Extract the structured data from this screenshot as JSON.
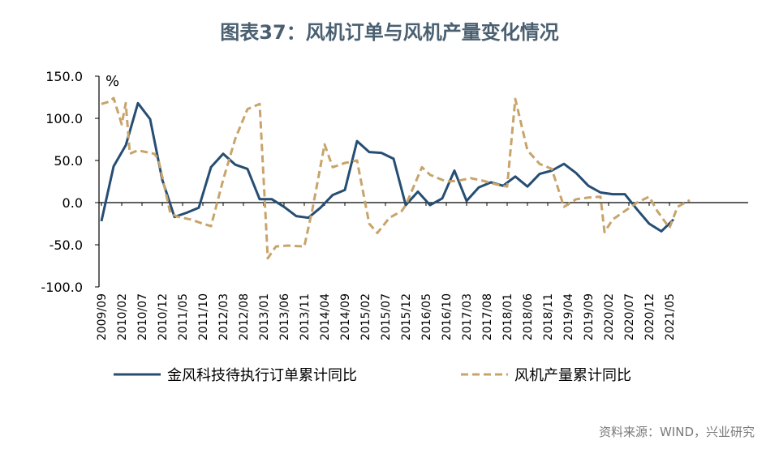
{
  "page": {
    "title": "图表37：风机订单与风机产量变化情况",
    "source": "资料来源：WIND，兴业研究"
  },
  "chart_data": {
    "type": "line",
    "title": "图表37：风机订单与风机产量变化情况",
    "unit": "%",
    "ylim": [
      -100,
      150
    ],
    "yticks": [
      -100,
      -50,
      0,
      50,
      100,
      150
    ],
    "ytick_labels": [
      "-100.0",
      "-50.0",
      "0.0",
      "50.0",
      "100.0",
      "150.0"
    ],
    "x_start": "2009/09",
    "x_labels": [
      "2009/09",
      "2010/02",
      "2010/07",
      "2010/12",
      "2011/05",
      "2011/10",
      "2012/03",
      "2012/08",
      "2013/01",
      "2013/06",
      "2013/11",
      "2014/04",
      "2014/09",
      "2015/02",
      "2015/07",
      "2015/12",
      "2016/05",
      "2016/10",
      "2017/03",
      "2017/08",
      "2018/01",
      "2018/06",
      "2018/11",
      "2019/04",
      "2019/09",
      "2020/02",
      "2020/07",
      "2020/12",
      "2021/05"
    ],
    "grid": false,
    "legend_position": "bottom",
    "series": [
      {
        "name": "金风科技待执行订单累计同比",
        "color": "#264d73",
        "dash": false,
        "points": [
          [
            "2009/09",
            -22
          ],
          [
            "2009/12",
            43
          ],
          [
            "2010/03",
            68
          ],
          [
            "2010/06",
            118
          ],
          [
            "2010/09",
            99
          ],
          [
            "2010/12",
            27
          ],
          [
            "2011/03",
            -17
          ],
          [
            "2011/06",
            -12
          ],
          [
            "2011/09",
            -6
          ],
          [
            "2011/12",
            42
          ],
          [
            "2012/03",
            58
          ],
          [
            "2012/06",
            45
          ],
          [
            "2012/09",
            40
          ],
          [
            "2012/12",
            4
          ],
          [
            "2013/03",
            4
          ],
          [
            "2013/06",
            -5
          ],
          [
            "2013/09",
            -16
          ],
          [
            "2013/12",
            -18
          ],
          [
            "2014/03",
            -6
          ],
          [
            "2014/06",
            9
          ],
          [
            "2014/09",
            15
          ],
          [
            "2014/12",
            73
          ],
          [
            "2015/03",
            60
          ],
          [
            "2015/06",
            59
          ],
          [
            "2015/09",
            52
          ],
          [
            "2015/12",
            -3
          ],
          [
            "2016/03",
            13
          ],
          [
            "2016/06",
            -3
          ],
          [
            "2016/09",
            5
          ],
          [
            "2016/12",
            38
          ],
          [
            "2017/03",
            2
          ],
          [
            "2017/06",
            18
          ],
          [
            "2017/09",
            24
          ],
          [
            "2017/12",
            20
          ],
          [
            "2018/03",
            31
          ],
          [
            "2018/06",
            19
          ],
          [
            "2018/09",
            34
          ],
          [
            "2018/12",
            38
          ],
          [
            "2019/03",
            46
          ],
          [
            "2019/06",
            35
          ],
          [
            "2019/09",
            20
          ],
          [
            "2019/12",
            12
          ],
          [
            "2020/03",
            10
          ],
          [
            "2020/06",
            10
          ],
          [
            "2020/09",
            -8
          ],
          [
            "2020/12",
            -25
          ],
          [
            "2021/03",
            -34
          ],
          [
            "2021/06",
            -20
          ]
        ]
      },
      {
        "name": "风机产量累计同比",
        "color": "#c8a46b",
        "dash": true,
        "points": [
          [
            "2009/09",
            117
          ],
          [
            "2009/11",
            120
          ],
          [
            "2009/12",
            124
          ],
          [
            "2010/02",
            93
          ],
          [
            "2010/03",
            118
          ],
          [
            "2010/04",
            58
          ],
          [
            "2010/06",
            62
          ],
          [
            "2010/08",
            60
          ],
          [
            "2010/10",
            58
          ],
          [
            "2010/11",
            52
          ],
          [
            "2011/02",
            -13
          ],
          [
            "2011/04",
            -17
          ],
          [
            "2011/07",
            -20
          ],
          [
            "2011/10",
            -25
          ],
          [
            "2011/12",
            -28
          ],
          [
            "2012/03",
            27
          ],
          [
            "2012/06",
            76
          ],
          [
            "2012/09",
            111
          ],
          [
            "2012/12",
            117
          ],
          [
            "2013/02",
            -66
          ],
          [
            "2013/04",
            -52
          ],
          [
            "2013/07",
            -51
          ],
          [
            "2013/11",
            -52
          ],
          [
            "2014/01",
            -8
          ],
          [
            "2014/04",
            69
          ],
          [
            "2014/06",
            42
          ],
          [
            "2014/09",
            47
          ],
          [
            "2014/12",
            50
          ],
          [
            "2015/03",
            -25
          ],
          [
            "2015/05",
            -36
          ],
          [
            "2015/08",
            -18
          ],
          [
            "2015/11",
            -10
          ],
          [
            "2015/12",
            -3
          ],
          [
            "2016/04",
            42
          ],
          [
            "2016/06",
            33
          ],
          [
            "2016/10",
            25
          ],
          [
            "2017/01",
            26
          ],
          [
            "2017/04",
            29
          ],
          [
            "2017/07",
            26
          ],
          [
            "2017/10",
            22
          ],
          [
            "2018/01",
            19
          ],
          [
            "2018/03",
            123
          ],
          [
            "2018/06",
            62
          ],
          [
            "2018/09",
            46
          ],
          [
            "2018/12",
            40
          ],
          [
            "2019/03",
            -5
          ],
          [
            "2019/06",
            4
          ],
          [
            "2019/09",
            6
          ],
          [
            "2019/12",
            7
          ],
          [
            "2020/01",
            -35
          ],
          [
            "2020/03",
            -20
          ],
          [
            "2020/06",
            -10
          ],
          [
            "2020/09",
            0
          ],
          [
            "2020/12",
            7
          ],
          [
            "2021/02",
            -10
          ],
          [
            "2021/05",
            -30
          ],
          [
            "2021/07",
            -5
          ],
          [
            "2021/10",
            3
          ]
        ]
      }
    ]
  }
}
